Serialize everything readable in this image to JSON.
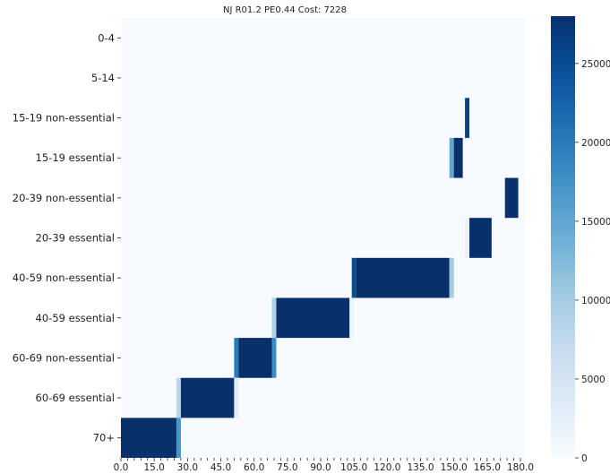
{
  "chart_data": {
    "type": "heatmap",
    "title": "NJ R01.2 PE0.44 Cost: 7228",
    "xlabel": "",
    "ylabel": "",
    "x_tick_labels": [
      "0.0",
      "15.0",
      "30.0",
      "45.0",
      "60.0",
      "75.0",
      "90.0",
      "105.0",
      "120.0",
      "135.0",
      "150.0",
      "165.0",
      "180.0"
    ],
    "x_tick_values": [
      0,
      15,
      30,
      45,
      60,
      75,
      90,
      105,
      120,
      135,
      150,
      165,
      180
    ],
    "x_range": [
      0,
      182
    ],
    "colorbar": {
      "min": 0,
      "max": 28000,
      "tick_labels": [
        "0",
        "5000",
        "10000",
        "15000",
        "20000",
        "25000"
      ],
      "tick_values": [
        0,
        5000,
        10000,
        15000,
        20000,
        25000
      ],
      "colormap": "Blues"
    },
    "rows": [
      {
        "label": "0-4",
        "cells": []
      },
      {
        "label": "5-14",
        "cells": []
      },
      {
        "label": "15-19 non-essential",
        "cells": [
          [
            155,
            157,
            26000
          ]
        ]
      },
      {
        "label": "15-19 essential",
        "cells": [
          [
            148,
            150,
            15000
          ],
          [
            150,
            154,
            28000
          ]
        ]
      },
      {
        "label": "20-39 non-essential",
        "cells": [
          [
            173,
            179,
            28000
          ]
        ]
      },
      {
        "label": "20-39 essential",
        "cells": [
          [
            155,
            157,
            2000
          ],
          [
            157,
            167,
            28000
          ]
        ]
      },
      {
        "label": "40-59 non-essential",
        "cells": [
          [
            104,
            106,
            25000
          ],
          [
            106,
            148,
            28000
          ],
          [
            148,
            150,
            10000
          ]
        ]
      },
      {
        "label": "40-59 essential",
        "cells": [
          [
            68,
            70,
            9000
          ],
          [
            70,
            103,
            28000
          ],
          [
            103,
            105,
            1500
          ]
        ]
      },
      {
        "label": "60-69 non-essential",
        "cells": [
          [
            51,
            53,
            20000
          ],
          [
            53,
            68,
            28000
          ],
          [
            68,
            70,
            18000
          ]
        ]
      },
      {
        "label": "60-69 essential",
        "cells": [
          [
            25,
            27,
            8000
          ],
          [
            27,
            51,
            28000
          ],
          [
            51,
            53,
            3000
          ]
        ]
      },
      {
        "label": "70+",
        "cells": [
          [
            0,
            25,
            28000
          ],
          [
            25,
            27,
            17000
          ]
        ]
      }
    ]
  }
}
